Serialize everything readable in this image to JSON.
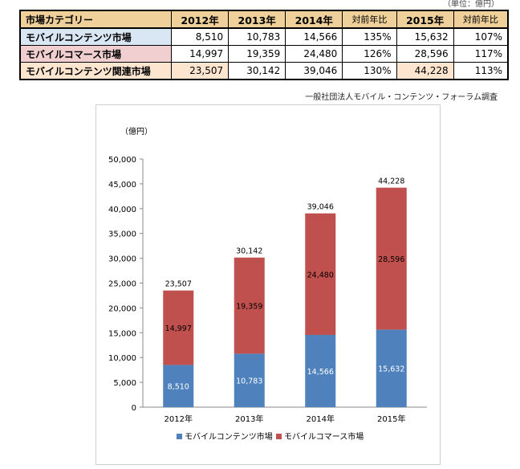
{
  "unit_note": "（単位：億円）",
  "table": {
    "headers": {
      "category": "市場カテゴリー",
      "y2012": "2012年",
      "y2013": "2013年",
      "y2014": "2014年",
      "ratio1": "対前年比",
      "y2015": "2015年",
      "ratio2": "対前年比"
    },
    "rows": [
      {
        "name": "モバイルコンテンツ市場",
        "v2012": "8,510",
        "v2013": "10,783",
        "v2014": "14,566",
        "r1": "135%",
        "v2015": "15,632",
        "r2": "107%"
      },
      {
        "name": "モバイルコマース市場",
        "v2012": "14,997",
        "v2013": "19,359",
        "v2014": "24,480",
        "r1": "126%",
        "v2015": "28,596",
        "r2": "117%"
      },
      {
        "name": "モバイルコンテンツ関連市場",
        "v2012": "23,507",
        "v2013": "30,142",
        "v2014": "39,046",
        "r1": "130%",
        "v2015": "44,228",
        "r2": "113%"
      }
    ]
  },
  "source": "一般社団法人モバイル・コンテンツ・フォーラム調査",
  "colors": {
    "content": "#4f81bd",
    "commerce": "#c0504d"
  },
  "chart_data": {
    "type": "bar",
    "stacked": true,
    "unit_label": "（億円）",
    "categories": [
      "2012年",
      "2013年",
      "2014年",
      "2015年"
    ],
    "series": [
      {
        "name": "モバイルコンテンツ市場",
        "values": [
          8510,
          10783,
          14566,
          15632
        ]
      },
      {
        "name": "モバイルコマース市場",
        "values": [
          14997,
          19359,
          24480,
          28596
        ]
      }
    ],
    "totals": [
      23507,
      30142,
      39046,
      44228
    ],
    "ylim": [
      0,
      50000
    ],
    "yticks": [
      0,
      5000,
      10000,
      15000,
      20000,
      25000,
      30000,
      35000,
      40000,
      45000,
      50000
    ],
    "legend_position": "bottom",
    "grid": false
  }
}
